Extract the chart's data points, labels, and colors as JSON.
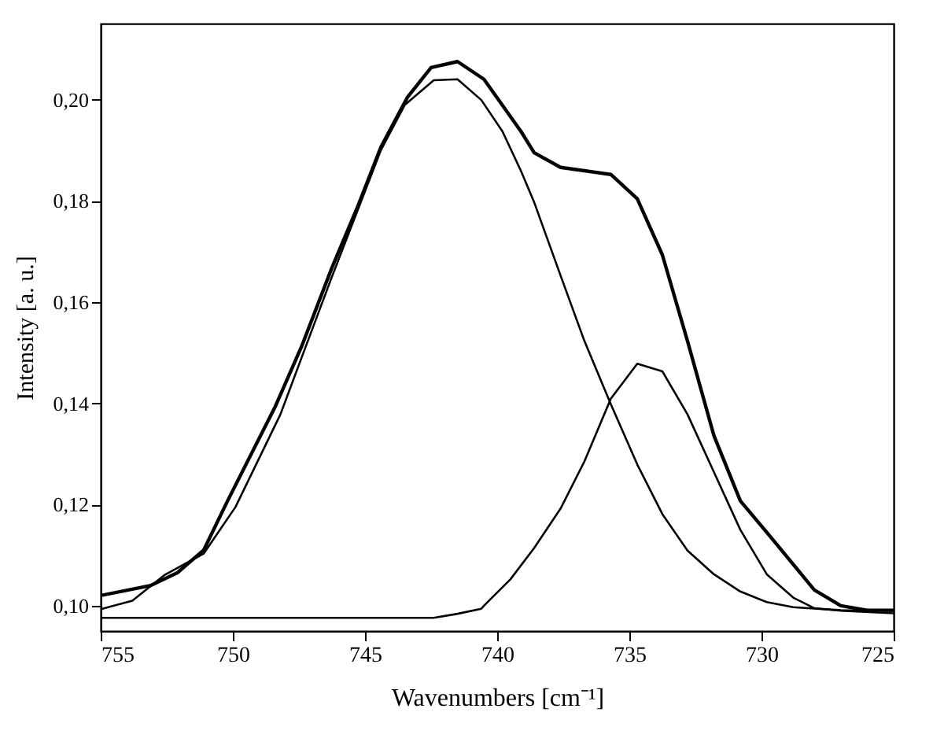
{
  "chart_data": {
    "type": "line",
    "xlabel": "Wavenumbers [cm⁻¹]",
    "ylabel": "Intensity [a. u.]",
    "xlim": [
      755,
      725
    ],
    "xticks": [
      755,
      750,
      745,
      740,
      735,
      730,
      725
    ],
    "ylim": [
      0.095,
      0.215
    ],
    "yticks": [
      {
        "value": 0.1,
        "label": "0,10"
      },
      {
        "value": 0.12,
        "label": "0,12"
      },
      {
        "value": 0.14,
        "label": "0,14"
      },
      {
        "value": 0.16,
        "label": "0,16"
      },
      {
        "value": 0.18,
        "label": "0,18"
      },
      {
        "value": 0.2,
        "label": "0,20"
      }
    ],
    "grid": false,
    "marker": "none",
    "line_style": "solid",
    "series": [
      {
        "color": "#000000",
        "x": [
          755,
          753.1,
          752.1,
          751.1,
          750.2,
          748.4,
          747.4,
          746.25,
          745.25,
          744.4,
          743.4,
          742.5,
          741.5,
          740.5,
          739.1,
          738.6,
          737.6,
          735.7,
          734.7,
          733.75,
          732.8,
          731.8,
          730.8,
          729.8,
          728.0,
          727.0,
          726.0,
          725
        ],
        "values": [
          0.102,
          0.104,
          0.1065,
          0.111,
          0.1207,
          0.1393,
          0.1512,
          0.1668,
          0.1792,
          0.1906,
          0.2004,
          0.2063,
          0.2075,
          0.204,
          0.1937,
          0.1895,
          0.1866,
          0.1852,
          0.1804,
          0.1693,
          0.1523,
          0.1336,
          0.1207,
          0.1145,
          0.1031,
          0.1,
          0.0991,
          0.0991
        ]
      },
      {
        "color": "#000000",
        "x": [
          755,
          753.8,
          752.6,
          751.1,
          749.9,
          748.2,
          747.4,
          746.25,
          745.25,
          744.4,
          743.5,
          742.4,
          741.5,
          740.6,
          739.8,
          739.1,
          738.6,
          737.6,
          736.7,
          735.7,
          734.7,
          733.75,
          732.8,
          731.8,
          730.8,
          729.8,
          728.8,
          727.0,
          725
        ],
        "values": [
          0.0993,
          0.101,
          0.106,
          0.1103,
          0.1195,
          0.1378,
          0.149,
          0.165,
          0.1785,
          0.19,
          0.1989,
          0.2038,
          0.204,
          0.1999,
          0.1937,
          0.1859,
          0.1797,
          0.1652,
          0.1523,
          0.1398,
          0.1279,
          0.1181,
          0.1109,
          0.1062,
          0.1028,
          0.1007,
          0.0997,
          0.0991,
          0.099
        ]
      },
      {
        "color": "#000000",
        "x": [
          755,
          742.4,
          741.5,
          740.6,
          740.5,
          739.5,
          738.6,
          737.6,
          736.7,
          735.7,
          734.7,
          733.75,
          732.8,
          731.8,
          730.8,
          729.8,
          728.8,
          728.0,
          727.0,
          725
        ],
        "values": [
          0.0976,
          0.0976,
          0.0984,
          0.0994,
          0.1,
          0.1052,
          0.1114,
          0.1192,
          0.1285,
          0.1409,
          0.1478,
          0.1463,
          0.1378,
          0.1264,
          0.115,
          0.1062,
          0.1016,
          0.0995,
          0.099,
          0.0985
        ]
      }
    ]
  }
}
